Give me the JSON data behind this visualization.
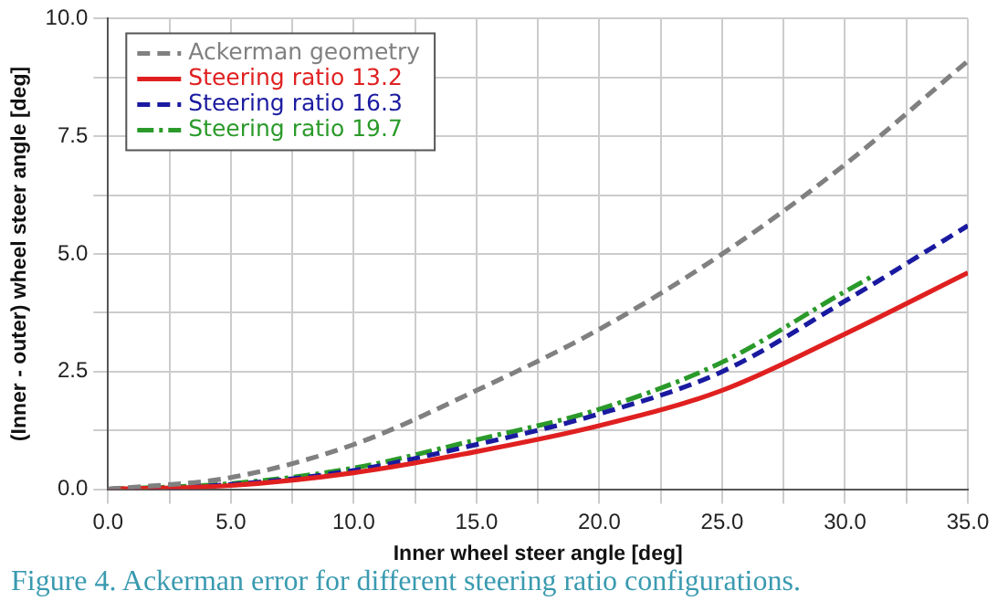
{
  "chart_data": {
    "type": "line",
    "xlabel": "Inner wheel steer angle [deg]",
    "ylabel": "(Inner - outer) wheel steer angle [deg]",
    "annotations": [
      "Figure 4. Ackerman error for different steering ratio configurations."
    ],
    "xlim": [
      0,
      35
    ],
    "ylim": [
      0,
      10
    ],
    "xticks": [
      {
        "value": 0,
        "label": "0.0"
      },
      {
        "value": 2.5,
        "label": null
      },
      {
        "value": 5,
        "label": "5.0"
      },
      {
        "value": 7.5,
        "label": null
      },
      {
        "value": 10,
        "label": "10.0"
      },
      {
        "value": 12.5,
        "label": null
      },
      {
        "value": 15,
        "label": "15.0"
      },
      {
        "value": 17.5,
        "label": null
      },
      {
        "value": 20,
        "label": "20.0"
      },
      {
        "value": 22.5,
        "label": null
      },
      {
        "value": 25,
        "label": "25.0"
      },
      {
        "value": 27.5,
        "label": null
      },
      {
        "value": 30,
        "label": "30.0"
      },
      {
        "value": 32.5,
        "label": null
      },
      {
        "value": 35,
        "label": "35.0"
      }
    ],
    "yticks": [
      {
        "value": 0,
        "label": "0.0"
      },
      {
        "value": 1.25,
        "label": null
      },
      {
        "value": 2.5,
        "label": "2.5"
      },
      {
        "value": 3.75,
        "label": null
      },
      {
        "value": 5,
        "label": "5.0"
      },
      {
        "value": 6.25,
        "label": null
      },
      {
        "value": 7.5,
        "label": "7.5"
      },
      {
        "value": 8.75,
        "label": null
      },
      {
        "value": 10,
        "label": "10.0"
      }
    ],
    "grid": true,
    "legend": "top left",
    "marker": "none",
    "series": [
      {
        "name": "Ackerman geometry",
        "color": "#808080",
        "line_style": "dashed",
        "x": [
          0,
          5,
          10,
          15,
          20,
          25,
          30,
          35
        ],
        "values": [
          0,
          0.25,
          0.95,
          2.1,
          3.4,
          5.0,
          6.9,
          9.1
        ]
      },
      {
        "name": "Steering ratio 13.2",
        "color": "#e02020",
        "line_style": "solid",
        "x": [
          0,
          5,
          10,
          15,
          20,
          25,
          30,
          35
        ],
        "values": [
          0,
          0.08,
          0.35,
          0.8,
          1.35,
          2.1,
          3.3,
          4.6
        ]
      },
      {
        "name": "Steering ratio 16.3",
        "color": "#1a1aa0",
        "line_style": "dashed",
        "x": [
          0,
          5,
          10,
          15,
          20,
          25,
          30,
          35
        ],
        "values": [
          0,
          0.1,
          0.4,
          0.95,
          1.6,
          2.5,
          4.0,
          5.6
        ]
      },
      {
        "name": "Steering ratio 19.7",
        "color": "#2a9a2a",
        "line_style": "dashdot",
        "x": [
          0,
          5,
          10,
          15,
          20,
          25,
          30,
          31.2
        ],
        "values": [
          0,
          0.12,
          0.45,
          1.05,
          1.7,
          2.7,
          4.2,
          4.55
        ]
      }
    ]
  }
}
